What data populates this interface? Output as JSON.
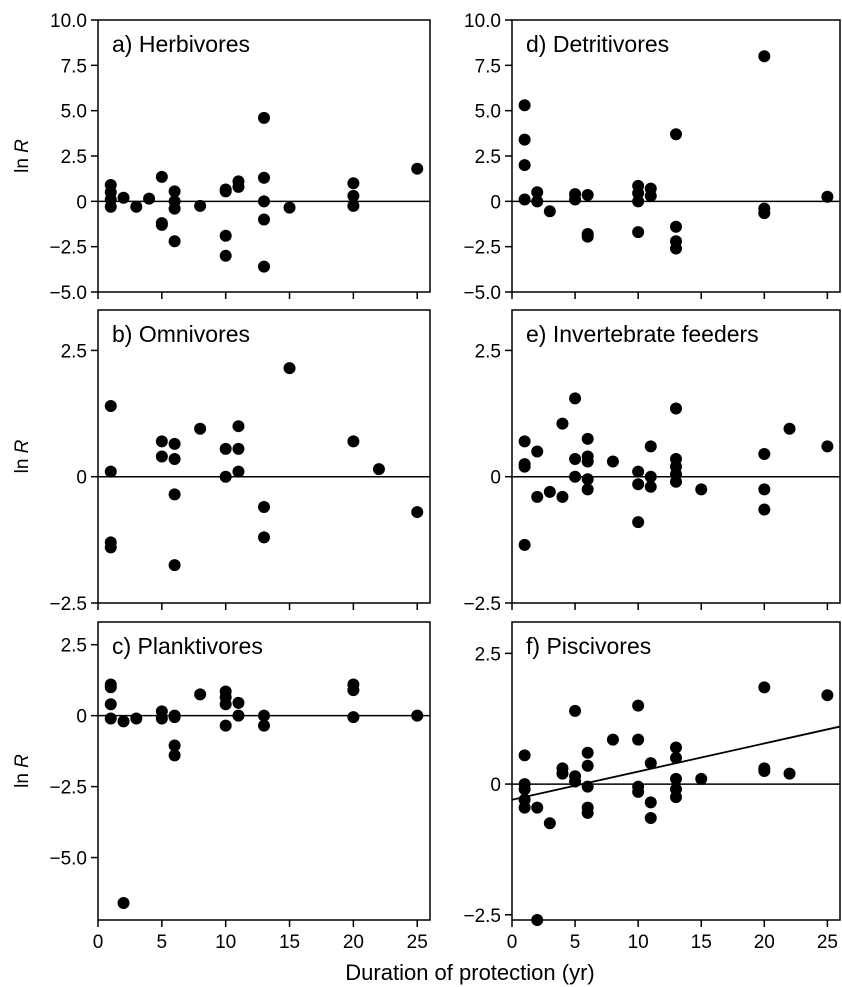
{
  "figure": {
    "xlabel": "Duration of protection (yr)",
    "ylabel_prefix": "ln ",
    "ylabel_var": "R"
  },
  "chart_data": [
    {
      "id": "a",
      "type": "scatter",
      "title": "a) Herbivores",
      "xlim": [
        0,
        26
      ],
      "ylim": [
        -5,
        10
      ],
      "yticks": [
        10,
        7.5,
        5,
        2.5,
        0,
        -2.5,
        -5
      ],
      "ytick_labels": [
        "10.0",
        "7.5",
        "5.0",
        "2.5",
        "0",
        "−2.5",
        "−5.0"
      ],
      "xticks": [
        0,
        5,
        10,
        15,
        20,
        25
      ],
      "xtick_labels": [],
      "points": [
        [
          1,
          0.9
        ],
        [
          1,
          0.5
        ],
        [
          1,
          0.1
        ],
        [
          1,
          -0.3
        ],
        [
          2,
          0.2
        ],
        [
          3,
          -0.3
        ],
        [
          4,
          0.15
        ],
        [
          5,
          1.35
        ],
        [
          5,
          -1.2
        ],
        [
          5,
          -1.3
        ],
        [
          6,
          0.55
        ],
        [
          6,
          0
        ],
        [
          6,
          -0.4
        ],
        [
          6,
          -2.2
        ],
        [
          8,
          -0.25
        ],
        [
          10,
          0.55
        ],
        [
          10,
          0.65
        ],
        [
          10,
          -1.9
        ],
        [
          10,
          -3
        ],
        [
          11,
          0.8
        ],
        [
          11,
          1.1
        ],
        [
          13,
          4.6
        ],
        [
          13,
          1.3
        ],
        [
          13,
          0
        ],
        [
          13,
          -1
        ],
        [
          13,
          -3.6
        ],
        [
          15,
          -0.35
        ],
        [
          20,
          1
        ],
        [
          20,
          0.3
        ],
        [
          20,
          -0.25
        ],
        [
          25,
          1.8
        ]
      ],
      "reference_line": 0
    },
    {
      "id": "d",
      "type": "scatter",
      "title": "d) Detritivores",
      "xlim": [
        0,
        26
      ],
      "ylim": [
        -5,
        10
      ],
      "yticks": [
        10,
        7.5,
        5,
        2.5,
        0,
        -2.5,
        -5
      ],
      "ytick_labels": [
        "10.0",
        "7.5",
        "5.0",
        "2.5",
        "0",
        "−2.5",
        "−5.0"
      ],
      "xticks": [
        0,
        5,
        10,
        15,
        20,
        25
      ],
      "xtick_labels": [],
      "points": [
        [
          1,
          5.3
        ],
        [
          1,
          3.4
        ],
        [
          1,
          2
        ],
        [
          1,
          0.1
        ],
        [
          2,
          0.5
        ],
        [
          2,
          0
        ],
        [
          3,
          -0.55
        ],
        [
          5,
          0.4
        ],
        [
          5,
          0.1
        ],
        [
          6,
          0.35
        ],
        [
          6,
          -1.8
        ],
        [
          6,
          -1.95
        ],
        [
          10,
          0.85
        ],
        [
          10,
          0.45
        ],
        [
          10,
          0
        ],
        [
          10,
          -1.7
        ],
        [
          11,
          0.7
        ],
        [
          11,
          0.3
        ],
        [
          13,
          3.7
        ],
        [
          13,
          -1.4
        ],
        [
          13,
          -2.2
        ],
        [
          13,
          -2.6
        ],
        [
          20,
          8
        ],
        [
          20,
          -0.4
        ],
        [
          20,
          -0.65
        ],
        [
          25,
          0.25
        ]
      ],
      "reference_line": 0
    },
    {
      "id": "b",
      "type": "scatter",
      "title": "b) Omnivores",
      "xlim": [
        0,
        26
      ],
      "ylim": [
        -2.5,
        3.3
      ],
      "yticks": [
        2.5,
        0,
        -2.5
      ],
      "ytick_labels": [
        "2.5",
        "0",
        "−2.5"
      ],
      "xticks": [
        0,
        5,
        10,
        15,
        20,
        25
      ],
      "xtick_labels": [],
      "points": [
        [
          1,
          1.4
        ],
        [
          1,
          0.1
        ],
        [
          1,
          -1.3
        ],
        [
          1,
          -1.4
        ],
        [
          5,
          0.7
        ],
        [
          5,
          0.4
        ],
        [
          6,
          0.65
        ],
        [
          6,
          0.35
        ],
        [
          6,
          -0.35
        ],
        [
          6,
          -1.75
        ],
        [
          8,
          0.95
        ],
        [
          10,
          0.55
        ],
        [
          10,
          0
        ],
        [
          11,
          1
        ],
        [
          11,
          0.55
        ],
        [
          11,
          0.1
        ],
        [
          13,
          -0.6
        ],
        [
          13,
          -1.2
        ],
        [
          15,
          2.15
        ],
        [
          20,
          0.7
        ],
        [
          22,
          0.15
        ],
        [
          25,
          -0.7
        ]
      ],
      "reference_line": 0
    },
    {
      "id": "e",
      "type": "scatter",
      "title": "e) Invertebrate feeders",
      "xlim": [
        0,
        26
      ],
      "ylim": [
        -2.5,
        3.3
      ],
      "yticks": [
        2.5,
        0,
        -2.5
      ],
      "ytick_labels": [
        "2.5",
        "0",
        "−2.5"
      ],
      "xticks": [
        0,
        5,
        10,
        15,
        20,
        25
      ],
      "xtick_labels": [],
      "points": [
        [
          1,
          0.7
        ],
        [
          1,
          0.25
        ],
        [
          1,
          0.2
        ],
        [
          1,
          -1.35
        ],
        [
          2,
          0.5
        ],
        [
          2,
          -0.4
        ],
        [
          3,
          -0.3
        ],
        [
          4,
          1.05
        ],
        [
          4,
          -0.4
        ],
        [
          5,
          1.55
        ],
        [
          5,
          0.35
        ],
        [
          5,
          0
        ],
        [
          6,
          0.75
        ],
        [
          6,
          0.4
        ],
        [
          6,
          0.3
        ],
        [
          6,
          -0.05
        ],
        [
          6,
          -0.25
        ],
        [
          8,
          0.3
        ],
        [
          10,
          0.1
        ],
        [
          10,
          -0.15
        ],
        [
          10,
          -0.9
        ],
        [
          11,
          0.6
        ],
        [
          11,
          0
        ],
        [
          11,
          -0.2
        ],
        [
          13,
          1.35
        ],
        [
          13,
          0.35
        ],
        [
          13,
          0.2
        ],
        [
          13,
          0.05
        ],
        [
          13,
          -0.1
        ],
        [
          15,
          -0.25
        ],
        [
          20,
          0.45
        ],
        [
          20,
          -0.25
        ],
        [
          20,
          -0.65
        ],
        [
          22,
          0.95
        ],
        [
          25,
          0.6
        ]
      ],
      "reference_line": 0
    },
    {
      "id": "c",
      "type": "scatter",
      "title": "c) Planktivores",
      "xlim": [
        0,
        26
      ],
      "ylim": [
        -7.2,
        3.3
      ],
      "yticks": [
        2.5,
        0,
        -2.5,
        -5
      ],
      "ytick_labels": [
        "2.5",
        "0",
        "−2.5",
        "−5.0"
      ],
      "xticks": [
        0,
        5,
        10,
        15,
        20,
        25
      ],
      "xtick_labels": [
        "0",
        "5",
        "10",
        "15",
        "20",
        "25"
      ],
      "points": [
        [
          1,
          1.1
        ],
        [
          1,
          1
        ],
        [
          1,
          0.4
        ],
        [
          1,
          -0.1
        ],
        [
          2,
          -0.2
        ],
        [
          2,
          -6.6
        ],
        [
          3,
          -0.1
        ],
        [
          5,
          0.15
        ],
        [
          5,
          -0.1
        ],
        [
          6,
          0
        ],
        [
          6,
          -0.05
        ],
        [
          6,
          -1.05
        ],
        [
          6,
          -1.4
        ],
        [
          8,
          0.75
        ],
        [
          10,
          0.85
        ],
        [
          10,
          0.65
        ],
        [
          10,
          0.4
        ],
        [
          10,
          -0.35
        ],
        [
          11,
          0.45
        ],
        [
          11,
          0
        ],
        [
          13,
          0
        ],
        [
          13,
          -0.35
        ],
        [
          20,
          1.1
        ],
        [
          20,
          0.9
        ],
        [
          20,
          -0.05
        ],
        [
          25,
          0
        ]
      ],
      "reference_line": 0
    },
    {
      "id": "f",
      "type": "scatter",
      "title": "f) Piscivores",
      "xlim": [
        0,
        26
      ],
      "ylim": [
        -2.6,
        3.1
      ],
      "yticks": [
        2.5,
        0,
        -2.5
      ],
      "ytick_labels": [
        "2.5",
        "0",
        "−2.5"
      ],
      "xticks": [
        0,
        5,
        10,
        15,
        20,
        25
      ],
      "xtick_labels": [
        "0",
        "5",
        "10",
        "15",
        "20",
        "25"
      ],
      "points": [
        [
          1,
          0.55
        ],
        [
          1,
          0
        ],
        [
          1,
          -0.1
        ],
        [
          1,
          -0.3
        ],
        [
          1,
          -0.45
        ],
        [
          2,
          -0.45
        ],
        [
          2,
          -2.6
        ],
        [
          3,
          -0.75
        ],
        [
          4,
          0.3
        ],
        [
          4,
          0.2
        ],
        [
          5,
          1.4
        ],
        [
          5,
          0.15
        ],
        [
          5,
          0.05
        ],
        [
          6,
          0.6
        ],
        [
          6,
          0.35
        ],
        [
          6,
          -0.05
        ],
        [
          6,
          -0.45
        ],
        [
          6,
          -0.55
        ],
        [
          8,
          0.85
        ],
        [
          10,
          1.5
        ],
        [
          10,
          0.85
        ],
        [
          10,
          -0.05
        ],
        [
          10,
          -0.15
        ],
        [
          11,
          0.4
        ],
        [
          11,
          -0.35
        ],
        [
          11,
          -0.65
        ],
        [
          13,
          0.7
        ],
        [
          13,
          0.5
        ],
        [
          13,
          0.1
        ],
        [
          13,
          -0.1
        ],
        [
          13,
          -0.25
        ],
        [
          15,
          0.1
        ],
        [
          20,
          1.85
        ],
        [
          20,
          0.3
        ],
        [
          20,
          0.25
        ],
        [
          22,
          0.2
        ],
        [
          25,
          1.7
        ]
      ],
      "reference_line": 0,
      "trend_line": [
        [
          0,
          -0.3
        ],
        [
          26,
          1.1
        ]
      ]
    }
  ]
}
